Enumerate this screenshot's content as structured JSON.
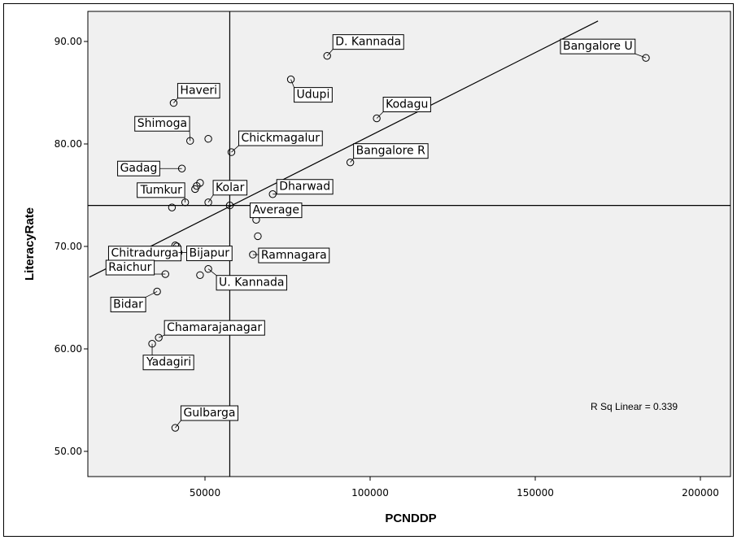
{
  "chart_data": {
    "type": "scatter",
    "xlabel": "PCNDDP",
    "ylabel": "LiteracyRate",
    "xlim": [
      15000,
      210000
    ],
    "ylim": [
      48000,
      93000
    ],
    "x_ticks": [
      50000,
      100000,
      150000,
      200000
    ],
    "x_tick_labels": [
      "50000",
      "100000",
      "150000",
      "200000"
    ],
    "y_ticks": [
      50,
      60,
      70,
      80,
      90
    ],
    "y_tick_labels": [
      "50.00",
      "60.00",
      "70.00",
      "80.00",
      "90.00"
    ],
    "y_values_in_data_units": true,
    "reference_lines": {
      "x": 57500,
      "y": 74.0
    },
    "fit_line": {
      "x1": 15000,
      "y1": 67.0,
      "x2": 169000,
      "y2": 92.0
    },
    "annotation": "R Sq Linear = 0.339",
    "points": [
      {
        "label": "D. Kannada",
        "x": 87000,
        "y": 88.6
      },
      {
        "label": "Bangalore U",
        "x": 183500,
        "y": 88.4
      },
      {
        "label": "Udupi",
        "x": 76000,
        "y": 86.3
      },
      {
        "label": "Haveri",
        "x": 40500,
        "y": 84.0
      },
      {
        "label": "Kodagu",
        "x": 102000,
        "y": 82.5
      },
      {
        "label": "Shimoga",
        "x": 45500,
        "y": 80.3
      },
      {
        "label": "",
        "x": 51000,
        "y": 80.5
      },
      {
        "label": "Chickmagalur",
        "x": 58000,
        "y": 79.2
      },
      {
        "label": "Bangalore R",
        "x": 94000,
        "y": 78.2
      },
      {
        "label": "Gadag",
        "x": 43000,
        "y": 77.6
      },
      {
        "label": "",
        "x": 48500,
        "y": 76.2
      },
      {
        "label": "",
        "x": 47500,
        "y": 75.9
      },
      {
        "label": "",
        "x": 47000,
        "y": 75.6
      },
      {
        "label": "Dharwad",
        "x": 70500,
        "y": 75.1
      },
      {
        "label": "Tumkur",
        "x": 44000,
        "y": 74.3
      },
      {
        "label": "Kolar",
        "x": 51000,
        "y": 74.3
      },
      {
        "label": "",
        "x": 40000,
        "y": 73.8
      },
      {
        "label": "Average",
        "x": 57500,
        "y": 74.0
      },
      {
        "label": "",
        "x": 65500,
        "y": 72.6
      },
      {
        "label": "Chitradurga",
        "x": 41000,
        "y": 70.1
      },
      {
        "label": "",
        "x": 41500,
        "y": 70.0
      },
      {
        "label": "",
        "x": 66000,
        "y": 71.0
      },
      {
        "label": "Bijapur",
        "x": 42000,
        "y": 69.4
      },
      {
        "label": "Ramnagara",
        "x": 64500,
        "y": 69.2
      },
      {
        "label": "Raichur",
        "x": 38000,
        "y": 67.3
      },
      {
        "label": "",
        "x": 48500,
        "y": 67.2
      },
      {
        "label": "U. Kannada",
        "x": 51000,
        "y": 67.8
      },
      {
        "label": "Bidar",
        "x": 35500,
        "y": 65.6
      },
      {
        "label": "Chamarajanagar",
        "x": 36000,
        "y": 61.1
      },
      {
        "label": "Yadagiri",
        "x": 34000,
        "y": 60.5
      },
      {
        "label": "Gulbarga",
        "x": 41000,
        "y": 52.3
      }
    ]
  }
}
